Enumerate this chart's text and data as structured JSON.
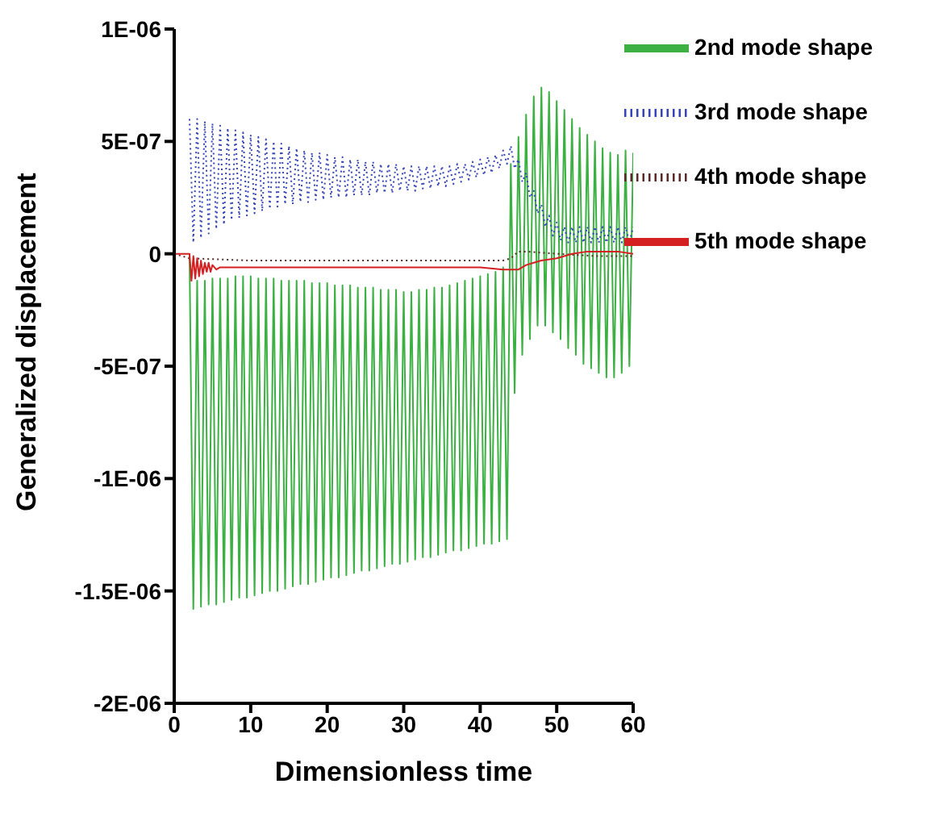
{
  "chart_data": {
    "type": "line",
    "xlabel": "Dimensionless time",
    "ylabel": "Generalized displacement",
    "x": [
      2,
      2.5,
      3,
      3.5,
      4,
      4.5,
      5,
      5.5,
      6,
      6.5,
      7,
      7.5,
      8,
      8.5,
      9,
      9.5,
      10,
      10.5,
      11,
      11.5,
      12,
      12.5,
      13,
      13.5,
      14,
      14.5,
      15,
      15.5,
      16,
      16.5,
      17,
      17.5,
      18,
      18.5,
      19,
      19.5,
      20,
      20.5,
      21,
      21.5,
      22,
      22.5,
      23,
      23.5,
      24,
      24.5,
      25,
      25.5,
      26,
      26.5,
      27,
      27.5,
      28,
      28.5,
      29,
      29.5,
      30,
      30.5,
      31,
      31.5,
      32,
      32.5,
      33,
      33.5,
      34,
      34.5,
      35,
      35.5,
      36,
      36.5,
      37,
      37.5,
      38,
      38.5,
      39,
      39.5,
      40,
      40.5,
      41,
      41.5,
      42,
      42.5,
      43,
      43.5,
      44,
      44.5,
      45,
      45.5,
      46,
      46.5,
      47,
      47.5,
      48,
      48.5,
      49,
      49.5,
      50,
      50.5,
      51,
      51.5,
      52,
      52.5,
      53,
      53.5,
      54,
      54.5,
      55,
      55.5,
      56,
      56.5,
      57,
      57.5,
      58,
      58.5,
      59,
      59.5,
      60
    ],
    "series": [
      {
        "name": "2nd mode shape",
        "color": "#3cb043",
        "line_style": "solid",
        "values": [
          0,
          -1.58e-06,
          -1.2e-07,
          -1.57e-06,
          -1.2e-07,
          -1.56e-06,
          -1.1e-07,
          -1.56e-06,
          -1.1e-07,
          -1.55e-06,
          -1.1e-07,
          -1.54e-06,
          -1e-07,
          -1.53e-06,
          -1e-07,
          -1.53e-06,
          -1e-07,
          -1.52e-06,
          -1.1e-07,
          -1.51e-06,
          -1.1e-07,
          -1.5e-06,
          -1.1e-07,
          -1.5e-06,
          -1.2e-07,
          -1.49e-06,
          -1.2e-07,
          -1.48e-06,
          -1.2e-07,
          -1.47e-06,
          -1.2e-07,
          -1.47e-06,
          -1.3e-07,
          -1.46e-06,
          -1.3e-07,
          -1.45e-06,
          -1.3e-07,
          -1.44e-06,
          -1.4e-07,
          -1.44e-06,
          -1.4e-07,
          -1.43e-06,
          -1.4e-07,
          -1.42e-06,
          -1.5e-07,
          -1.41e-06,
          -1.5e-07,
          -1.41e-06,
          -1.5e-07,
          -1.4e-06,
          -1.6e-07,
          -1.39e-06,
          -1.6e-07,
          -1.38e-06,
          -1.6e-07,
          -1.38e-06,
          -1.7e-07,
          -1.37e-06,
          -1.7e-07,
          -1.36e-06,
          -1.6e-07,
          -1.35e-06,
          -1.6e-07,
          -1.35e-06,
          -1.5e-07,
          -1.34e-06,
          -1.5e-07,
          -1.33e-06,
          -1.4e-07,
          -1.32e-06,
          -1.3e-07,
          -1.32e-06,
          -1.2e-07,
          -1.31e-06,
          -1.1e-07,
          -1.3e-06,
          -1e-07,
          -1.29e-06,
          -9e-08,
          -1.29e-06,
          -8e-08,
          -1.28e-06,
          -6e-08,
          -1.27e-06,
          4e-07,
          -6.2e-07,
          5.2e-07,
          -4.5e-07,
          6.2e-07,
          -3.8e-07,
          7e-07,
          -3.2e-07,
          7.4e-07,
          -3.2e-07,
          7.2e-07,
          -3.5e-07,
          6.8e-07,
          -3.8e-07,
          6.4e-07,
          -4.2e-07,
          6e-07,
          -4.5e-07,
          5.6e-07,
          -4.9e-07,
          5.3e-07,
          -5.1e-07,
          5e-07,
          -5.3e-07,
          4.7e-07,
          -5.5e-07,
          4.5e-07,
          -5.5e-07,
          4.4e-07,
          -5.3e-07,
          4.6e-07,
          -5e-07,
          4.5e-07
        ]
      },
      {
        "name": "3rd mode shape",
        "color": "#3545b5",
        "line_style": "dotted",
        "values": [
          6e-07,
          5e-08,
          6e-07,
          7e-08,
          5.9e-07,
          9e-08,
          5.8e-07,
          1.1e-07,
          5.7e-07,
          1.3e-07,
          5.6e-07,
          1.5e-07,
          5.5e-07,
          1.6e-07,
          5.4e-07,
          1.7e-07,
          5.3e-07,
          1.8e-07,
          5.2e-07,
          1.9e-07,
          5.1e-07,
          2e-07,
          5e-07,
          2.1e-07,
          4.9e-07,
          2.2e-07,
          4.8e-07,
          2.2e-07,
          4.7e-07,
          2.3e-07,
          4.6e-07,
          2.3e-07,
          4.5e-07,
          2.4e-07,
          4.5e-07,
          2.4e-07,
          4.4e-07,
          2.5e-07,
          4.3e-07,
          2.5e-07,
          4.3e-07,
          2.5e-07,
          4.2e-07,
          2.6e-07,
          4.2e-07,
          2.6e-07,
          4.1e-07,
          2.6e-07,
          4.1e-07,
          2.7e-07,
          4e-07,
          2.7e-07,
          4e-07,
          2.7e-07,
          4e-07,
          2.8e-07,
          3.9e-07,
          2.8e-07,
          3.9e-07,
          2.8e-07,
          3.9e-07,
          2.9e-07,
          3.9e-07,
          2.9e-07,
          3.9e-07,
          3e-07,
          3.9e-07,
          3e-07,
          3.9e-07,
          3.1e-07,
          4e-07,
          3.2e-07,
          4e-07,
          3.3e-07,
          4.1e-07,
          3.4e-07,
          4.2e-07,
          3.5e-07,
          4.3e-07,
          3.6e-07,
          4.4e-07,
          3.8e-07,
          4.6e-07,
          4e-07,
          4.8e-07,
          3.8e-07,
          4.2e-07,
          3.2e-07,
          3.6e-07,
          2.5e-07,
          2.8e-07,
          1.8e-07,
          2.2e-07,
          1.2e-07,
          1.7e-07,
          8e-08,
          1.4e-07,
          6e-08,
          1.2e-07,
          5e-08,
          1.2e-07,
          5e-08,
          1.2e-07,
          5e-08,
          1.2e-07,
          5e-08,
          1.2e-07,
          5e-08,
          1.2e-07,
          5e-08,
          1.2e-07,
          5e-08,
          1.2e-07,
          5e-08,
          1.2e-07,
          5e-08,
          1.2e-07
        ]
      },
      {
        "name": "4th mode shape",
        "color": "#5a2828",
        "line_style": "dotted",
        "x": [
          0,
          2,
          10,
          20,
          30,
          40,
          43,
          44,
          45,
          46,
          50,
          55,
          60
        ],
        "values": [
          0,
          -2e-08,
          -3e-08,
          -3e-08,
          -3e-08,
          -3e-08,
          -3e-08,
          -2e-08,
          1e-08,
          1e-08,
          0,
          -1e-08,
          -1e-08
        ]
      },
      {
        "name": "5th mode shape",
        "color": "#d42020",
        "line_style": "solid",
        "x": [
          0,
          2,
          2.25,
          2.5,
          2.75,
          3,
          3.25,
          3.5,
          3.75,
          4,
          4.25,
          4.5,
          4.75,
          5,
          5.5,
          6,
          10,
          20,
          30,
          40,
          43,
          44,
          45,
          46,
          47,
          48,
          50,
          52,
          54,
          56,
          58,
          60
        ],
        "values": [
          0,
          0,
          -1.2e-07,
          -1e-08,
          -1.1e-07,
          -2e-08,
          -1e-07,
          -3e-08,
          -9e-08,
          -4e-08,
          -8e-08,
          -4e-08,
          -8e-08,
          -5e-08,
          -7e-08,
          -6e-08,
          -6e-08,
          -6e-08,
          -6e-08,
          -6e-08,
          -7e-08,
          -7e-08,
          -7e-08,
          -5e-08,
          -4e-08,
          -3e-08,
          -2e-08,
          0,
          1e-08,
          1e-08,
          1e-08,
          0
        ]
      }
    ],
    "xlim": [
      0,
      60
    ],
    "xticks": [
      0,
      10,
      20,
      30,
      40,
      50,
      60
    ],
    "ylim": [
      -2e-06,
      1e-06
    ],
    "yticks": [
      {
        "value": -2e-06,
        "label": "-2E-06"
      },
      {
        "value": -1.5e-06,
        "label": "-1.5E-06"
      },
      {
        "value": -1e-06,
        "label": "-1E-06"
      },
      {
        "value": -5e-07,
        "label": "-5E-07"
      },
      0,
      {
        "value": 5e-07,
        "label": "5E-07"
      },
      {
        "value": 1e-06,
        "label": "1E-06"
      }
    ],
    "legend": "top right",
    "grid": false,
    "marker": "none"
  }
}
